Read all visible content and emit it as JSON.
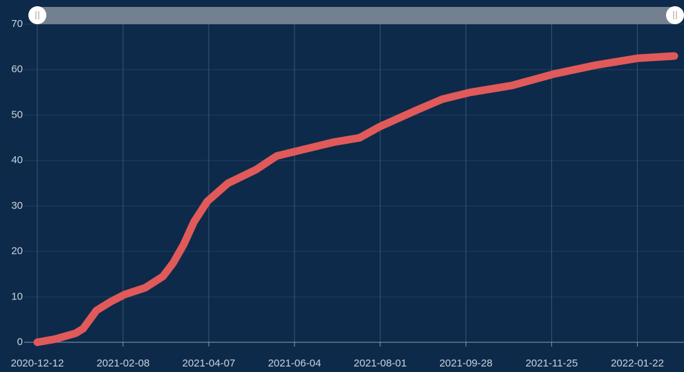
{
  "chart_data": {
    "type": "line",
    "x": [
      "2020-12-12",
      "2020-12-24",
      "2021-01-07",
      "2021-01-12",
      "2021-01-21",
      "2021-01-31",
      "2021-02-09",
      "2021-02-23",
      "2021-03-07",
      "2021-03-14",
      "2021-03-21",
      "2021-03-28",
      "2021-04-06",
      "2021-04-20",
      "2021-05-09",
      "2021-05-23",
      "2021-06-11",
      "2021-06-30",
      "2021-07-18",
      "2021-08-01",
      "2021-08-25",
      "2021-09-12",
      "2021-10-01",
      "2021-10-29",
      "2021-11-26",
      "2021-12-25",
      "2022-01-22",
      "2022-02-16"
    ],
    "series": [
      {
        "color": "#e05a5a",
        "values": [
          0,
          0.7,
          2,
          3,
          7,
          9,
          10.5,
          12,
          14.5,
          17.5,
          21.5,
          26.5,
          31,
          35,
          38,
          41,
          42.5,
          44,
          45,
          47.5,
          51,
          53.5,
          55,
          56.5,
          59,
          61,
          62.5,
          63
        ]
      }
    ],
    "xlim": [
      "2020-12-12",
      "2022-02-16"
    ],
    "xticks": [
      "2020-12-12",
      "2021-02-08",
      "2021-04-07",
      "2021-06-04",
      "2021-08-01",
      "2021-09-28",
      "2021-11-25",
      "2022-01-22"
    ],
    "ylim": [
      0,
      70
    ],
    "yticks": [
      0,
      10,
      20,
      30,
      40,
      50,
      60,
      70
    ],
    "grid": true
  }
}
